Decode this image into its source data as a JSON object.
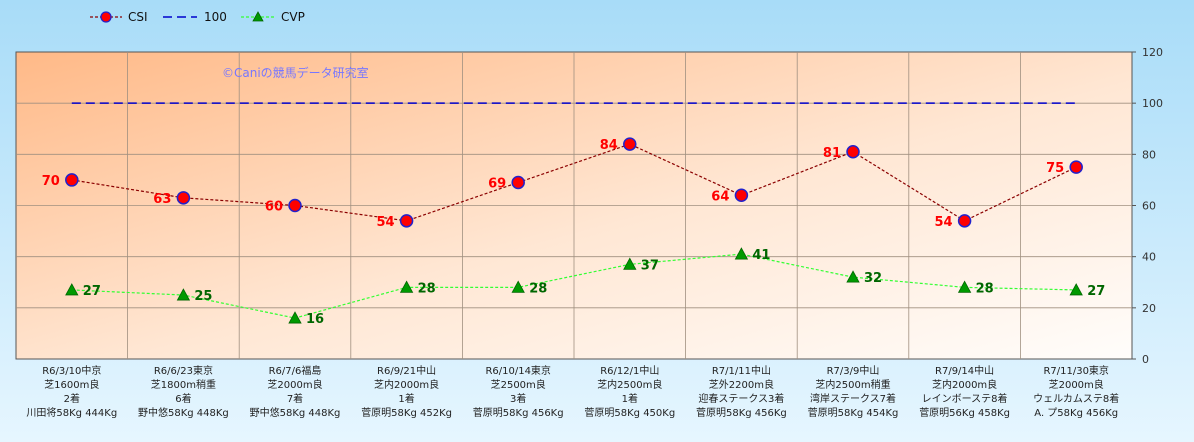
{
  "chart_data": {
    "type": "line",
    "watermark": "©Caniの競馬データ研究室",
    "legend_position": "top-left",
    "grid": true,
    "ylim": [
      0,
      120
    ],
    "yticks": [
      0,
      20,
      40,
      60,
      80,
      100,
      120
    ],
    "categories": [
      [
        "R6/3/10中京",
        "芝1600m良",
        "2着",
        "川田将58Kg 444Kg"
      ],
      [
        "R6/6/23東京",
        "芝1800m稍重",
        "6着",
        "野中悠58Kg 448Kg"
      ],
      [
        "R6/7/6福島",
        "芝2000m良",
        "7着",
        "野中悠58Kg 448Kg"
      ],
      [
        "R6/9/21中山",
        "芝内2000m良",
        "1着",
        "菅原明58Kg 452Kg"
      ],
      [
        "R6/10/14東京",
        "芝2500m良",
        "3着",
        "菅原明58Kg 456Kg"
      ],
      [
        "R6/12/1中山",
        "芝内2500m良",
        "1着",
        "菅原明58Kg 450Kg"
      ],
      [
        "R7/1/11中山",
        "芝外2200m良",
        "迎春ステークス3着",
        "菅原明58Kg 456Kg"
      ],
      [
        "R7/3/9中山",
        "芝内2500m稍重",
        "湾岸ステークス7着",
        "菅原明58Kg 454Kg"
      ],
      [
        "R7/9/14中山",
        "芝内2000m良",
        "レインボーステ8着",
        "菅原明56Kg 458Kg"
      ],
      [
        "R7/11/30東京",
        "芝2000m良",
        "ウェルカムステ8着",
        "A. プ58Kg 456Kg"
      ]
    ],
    "series": [
      {
        "name": "CSI",
        "values": [
          70,
          63,
          60,
          54,
          69,
          84,
          64,
          81,
          54,
          75
        ],
        "color": "#8b0000",
        "marker_color": "#ff0000",
        "marker_edge": "#2222cc",
        "label_color": "#ff0000"
      },
      {
        "name": "100",
        "values": [
          100,
          100,
          100,
          100,
          100,
          100,
          100,
          100,
          100,
          100
        ],
        "color": "#0000cc"
      },
      {
        "name": "CVP",
        "values": [
          27,
          25,
          16,
          28,
          28,
          37,
          41,
          32,
          28,
          27
        ],
        "color": "#33ff33",
        "marker_color": "#009900",
        "label_color": "#006600"
      }
    ]
  }
}
